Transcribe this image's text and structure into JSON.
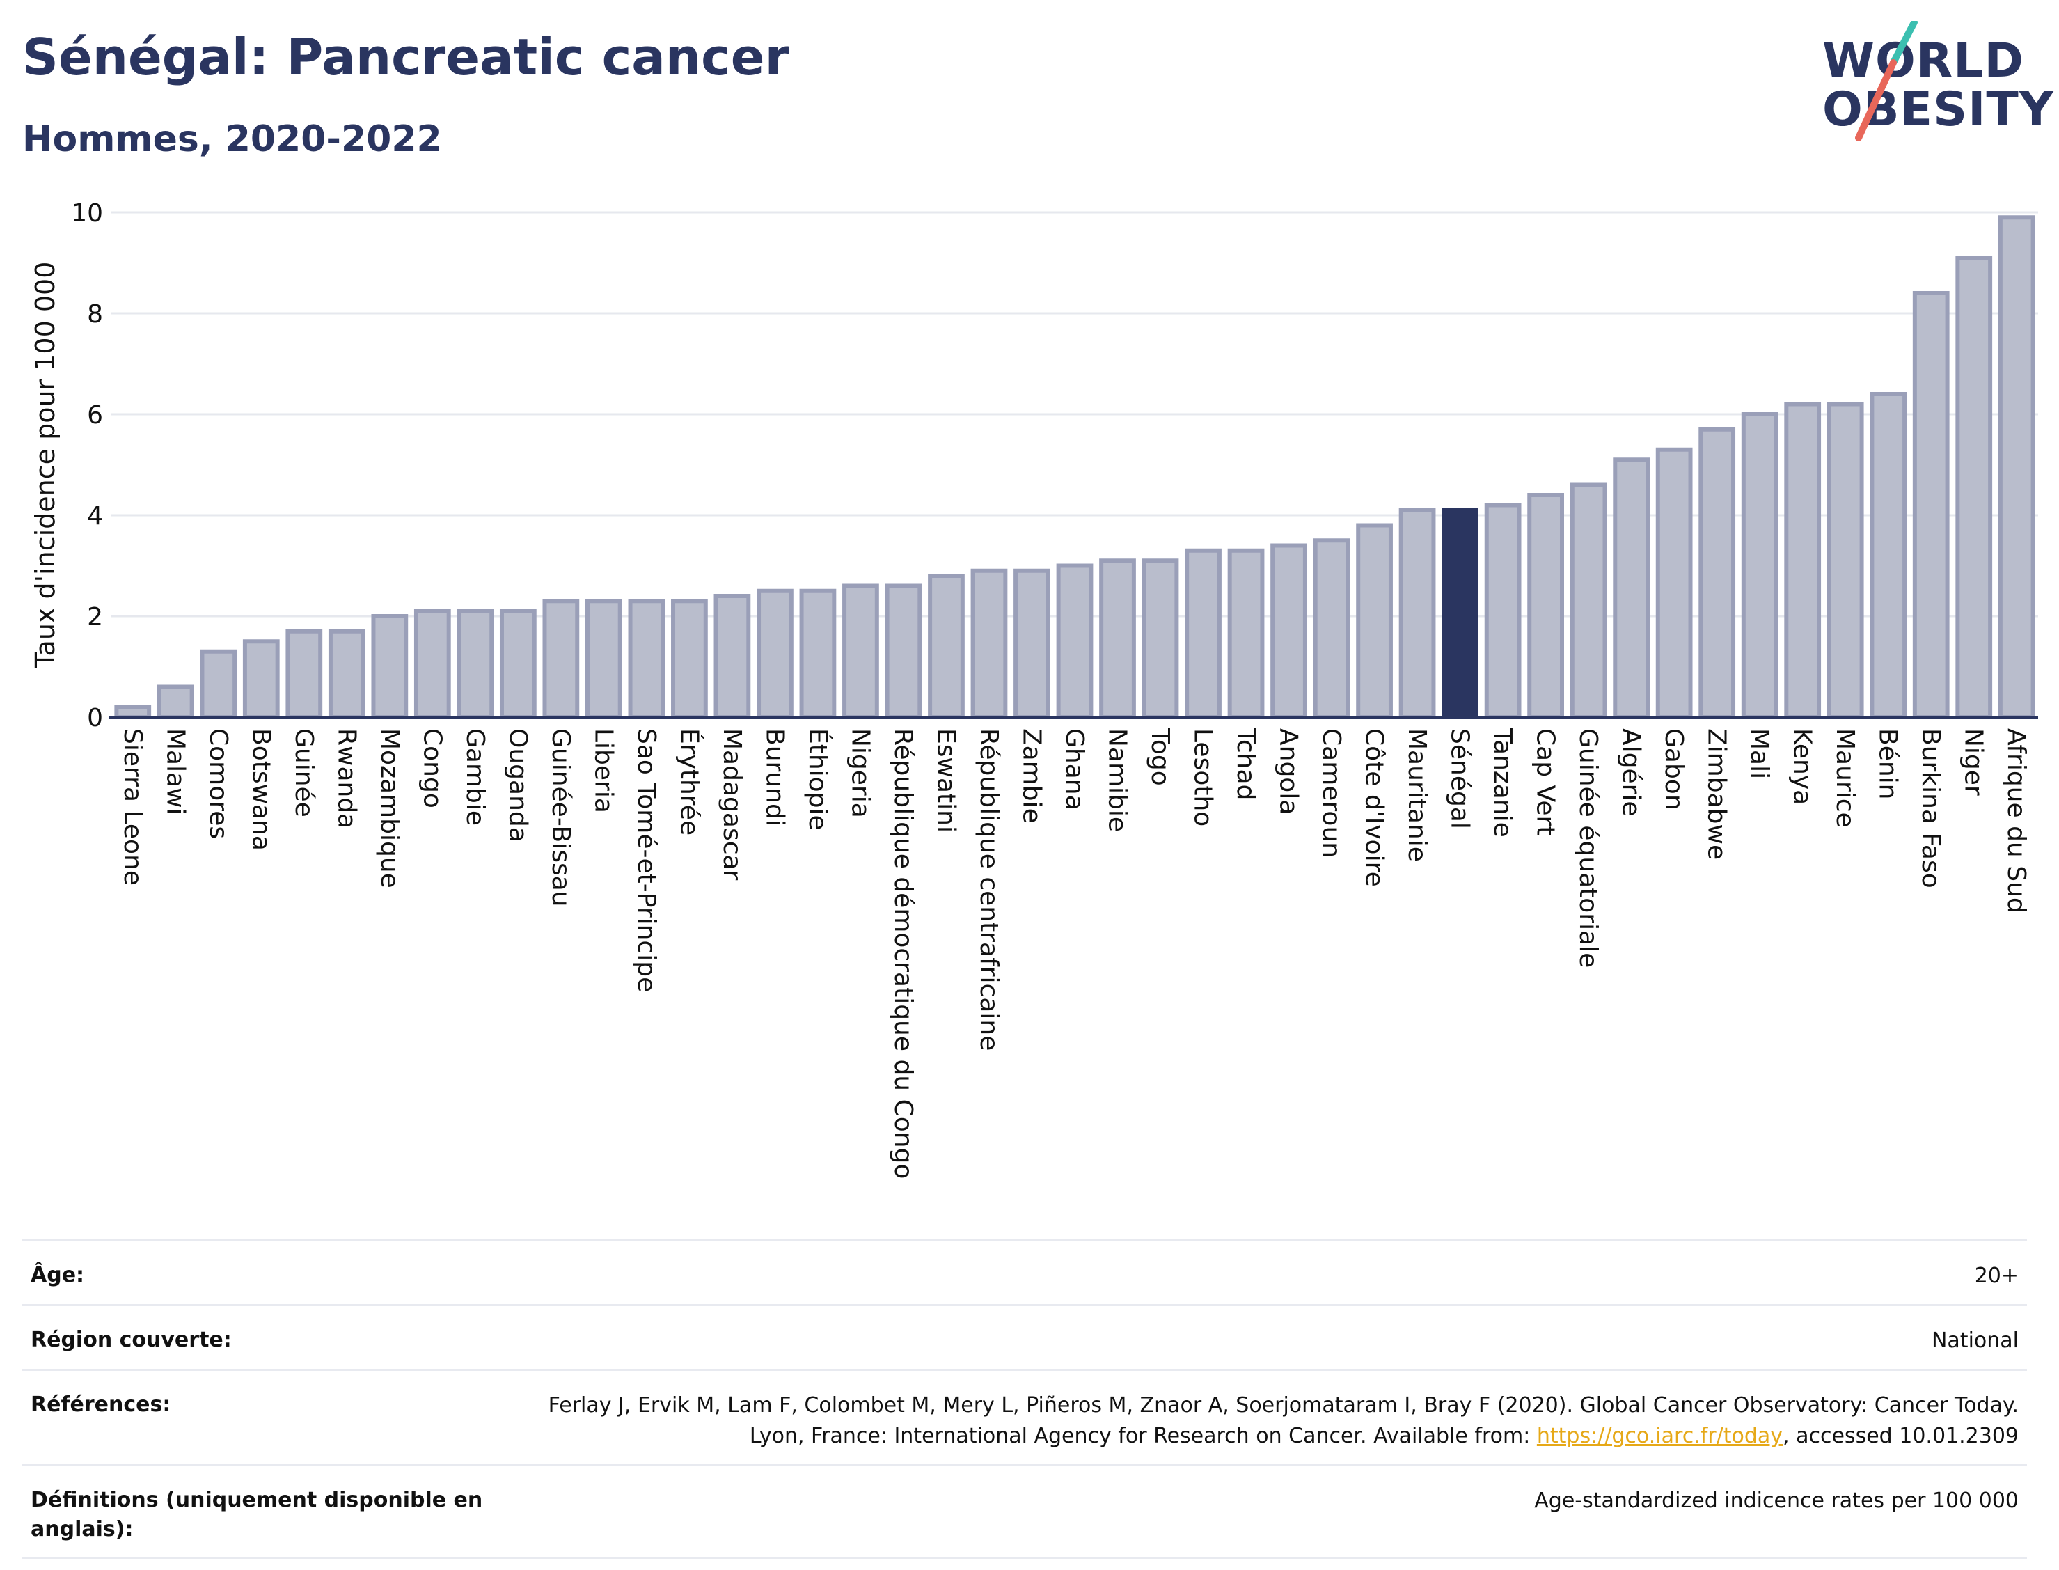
{
  "header": {
    "title": "Sénégal: Pancreatic cancer",
    "subtitle": "Hommes, 2020-2022"
  },
  "logo": {
    "line1": "WORLD",
    "line2": "OBESITY",
    "colors": {
      "text": "#2a3560",
      "slash_top": "#3bbfb0",
      "slash_bottom": "#e8675a"
    }
  },
  "colors": {
    "bar": "#b9bdcc",
    "bar_stroke": "#9a9fb8",
    "highlight": "#2a3560",
    "grid": "#e6e8ee",
    "axis": "#2a3560"
  },
  "chart_data": {
    "type": "bar",
    "title": "Sénégal: Pancreatic cancer",
    "subtitle": "Hommes, 2020-2022",
    "xlabel": "",
    "ylabel": "Taux d'incidence pour 100 000",
    "ylim": [
      0,
      10
    ],
    "yticks": [
      0,
      2,
      4,
      6,
      8,
      10
    ],
    "grid": true,
    "highlight": "Sénégal",
    "categories": [
      "Sierra Leone",
      "Malawi",
      "Comores",
      "Botswana",
      "Guinée",
      "Rwanda",
      "Mozambique",
      "Congo",
      "Gambie",
      "Ouganda",
      "Guinée-Bissau",
      "Liberia",
      "Sao Tomé-et-Principe",
      "Érythrée",
      "Madagascar",
      "Burundi",
      "Éthiopie",
      "Nigeria",
      "République démocratique du Congo",
      "Eswatini",
      "République centrafricaine",
      "Zambie",
      "Ghana",
      "Namibie",
      "Togo",
      "Lesotho",
      "Tchad",
      "Angola",
      "Cameroun",
      "Côte d'Ivoire",
      "Mauritanie",
      "Sénégal",
      "Tanzanie",
      "Cap Vert",
      "Guinée équatoriale",
      "Algérie",
      "Gabon",
      "Zimbabwe",
      "Mali",
      "Kenya",
      "Maurice",
      "Bénin",
      "Burkina Faso",
      "Niger",
      "Afrique du Sud"
    ],
    "values": [
      0.2,
      0.6,
      1.3,
      1.5,
      1.7,
      1.7,
      2.0,
      2.1,
      2.1,
      2.1,
      2.3,
      2.3,
      2.3,
      2.3,
      2.4,
      2.5,
      2.5,
      2.6,
      2.6,
      2.8,
      2.9,
      2.9,
      3.0,
      3.1,
      3.1,
      3.3,
      3.3,
      3.4,
      3.5,
      3.8,
      4.1,
      4.1,
      4.2,
      4.4,
      4.6,
      5.1,
      5.3,
      5.7,
      6.0,
      6.2,
      6.2,
      6.4,
      8.4,
      9.1,
      9.9
    ]
  },
  "meta": {
    "age_label": "Âge:",
    "age_value": "20+",
    "region_label": "Région couverte:",
    "region_value": "National",
    "references_label": "Références:",
    "references_text_1": "Ferlay J, Ervik M, Lam F, Colombet M, Mery L, Piñeros M, Znaor A, Soerjomataram I, Bray F (2020). Global Cancer Observatory: Cancer Today. Lyon, France: International Agency for Research on Cancer. Available from: ",
    "references_link": "https://gco.iarc.fr/today",
    "references_text_2": ", accessed 10.01.2309",
    "definitions_label": "Définitions (uniquement disponible en anglais):",
    "definitions_value": "Age-standardized indicence rates per 100 000"
  }
}
